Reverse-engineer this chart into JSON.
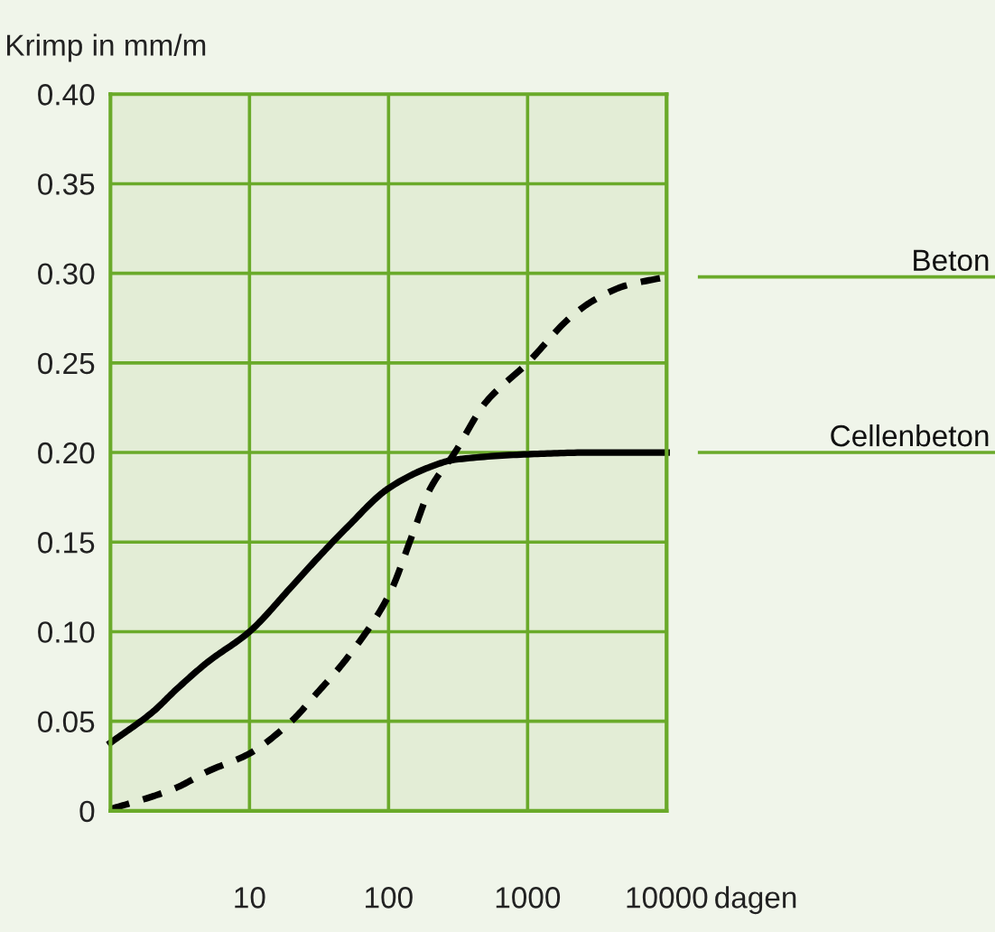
{
  "chart_data": {
    "type": "line",
    "ylabel": "Krimp in mm/m",
    "xlabel": "dagen",
    "log": "x",
    "xlim": [
      1,
      10000
    ],
    "xticks": [
      10,
      100,
      1000,
      10000
    ],
    "ylim": [
      0,
      0.4
    ],
    "yticks": [
      {
        "value": 0,
        "label": "0"
      },
      {
        "value": 0.05,
        "label": "0.05"
      },
      {
        "value": 0.1,
        "label": "0.10"
      },
      {
        "value": 0.15,
        "label": "0.15"
      },
      {
        "value": 0.2,
        "label": "0.20"
      },
      {
        "value": 0.25,
        "label": "0.25"
      },
      {
        "value": 0.3,
        "label": "0.30"
      },
      {
        "value": 0.35,
        "label": "0.35"
      },
      {
        "value": 0.4,
        "label": "0.40"
      }
    ],
    "grid": true,
    "legend": false,
    "marker": "none",
    "series": [
      {
        "name": "Beton",
        "color": "#000000",
        "line_style": "dashed",
        "x": [
          1,
          2,
          3,
          5,
          10,
          20,
          30,
          50,
          100,
          150,
          200,
          300,
          500,
          1000,
          2000,
          3000,
          5000,
          10000
        ],
        "values": [
          0.001,
          0.008,
          0.013,
          0.022,
          0.032,
          0.05,
          0.065,
          0.085,
          0.12,
          0.155,
          0.18,
          0.2,
          0.228,
          0.25,
          0.275,
          0.285,
          0.293,
          0.298
        ]
      },
      {
        "name": "Cellenbeton",
        "color": "#000000",
        "line_style": "solid",
        "x": [
          1,
          2,
          3,
          5,
          10,
          20,
          30,
          50,
          100,
          200,
          300,
          1000,
          3000,
          10000
        ],
        "values": [
          0.038,
          0.055,
          0.068,
          0.083,
          0.1,
          0.125,
          0.14,
          0.158,
          0.18,
          0.192,
          0.196,
          0.199,
          0.2,
          0.2
        ]
      }
    ]
  }
}
